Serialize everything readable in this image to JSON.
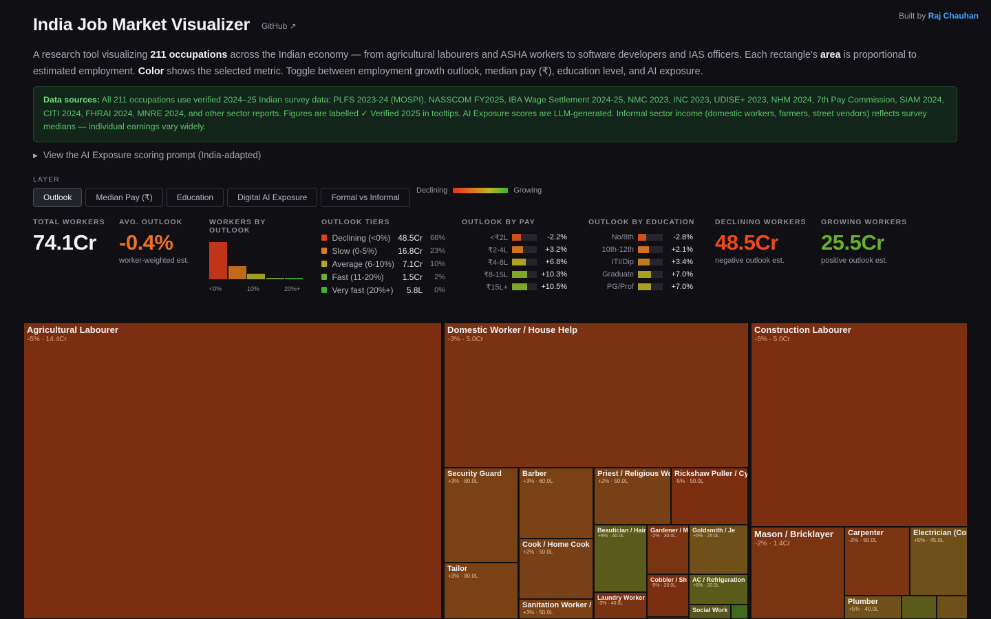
{
  "header": {
    "title": "India Job Market Visualizer",
    "github_link": "GitHub ↗",
    "built_by_prefix": "Built by",
    "author": "Raj Chauhan"
  },
  "intro": {
    "p1": "A research tool visualizing ",
    "b1": "211 occupations",
    "p2": " across the Indian economy — from agricultural labourers and ASHA workers to software developers and IAS officers. Each rectangle's ",
    "b2": "area",
    "p3": " is proportional to estimated employment. ",
    "b3": "Color",
    "p4": " shows the selected metric. Toggle between employment growth outlook, median pay (₹), education level, and AI exposure."
  },
  "sources": {
    "label": "Data sources:",
    "text": " All 211 occupations use verified 2024–25 Indian survey data: PLFS 2023-24 (MOSPI), NASSCOM FY2025, IBA Wage Settlement 2024-25, NMC 2023, INC 2023, UDISE+ 2023, NHM 2024, 7th Pay Commission, SIAM 2024, CITI 2024, FHRAI 2024, MNRE 2024, and other sector reports. Figures are labelled ✓ Verified 2025 in tooltips. AI Exposure scores are LLM-generated. Informal sector income (domestic workers, farmers, street vendors) reflects survey medians — individual earnings vary widely."
  },
  "prompt_toggle": "View the AI Exposure scoring prompt (India-adapted)",
  "layer": {
    "label": "LAYER",
    "tabs": [
      "Outlook",
      "Median Pay (₹)",
      "Education",
      "Digital AI Exposure",
      "Formal vs Informal"
    ],
    "active": 0
  },
  "legend": {
    "left": "Declining",
    "right": "Growing"
  },
  "stats": {
    "total": {
      "label": "TOTAL WORKERS",
      "value": "74.1Cr"
    },
    "avg": {
      "label": "AVG. OUTLOOK",
      "value": "-0.4%",
      "sub": "worker-weighted est.",
      "color": "#f07020"
    },
    "hist": {
      "label": "WORKERS BY OUTLOOK",
      "bars": [
        {
          "share": 0.66,
          "color": "#c0351a"
        },
        {
          "share": 0.23,
          "color": "#c06a1a"
        },
        {
          "share": 0.1,
          "color": "#a0a020"
        },
        {
          "share": 0.02,
          "color": "#6a9a20"
        },
        {
          "share": 0.01,
          "color": "#3aa030"
        }
      ],
      "ticks": [
        "<0%",
        "10%",
        "20%+"
      ]
    },
    "tiers": {
      "label": "OUTLOOK TIERS",
      "rows": [
        {
          "name": "Declining (<0%)",
          "count": "48.5Cr",
          "pct": "66%",
          "color": "#e0401c"
        },
        {
          "name": "Slow (0-5%)",
          "count": "16.8Cr",
          "pct": "23%",
          "color": "#e07a20"
        },
        {
          "name": "Average (6-10%)",
          "count": "7.1Cr",
          "pct": "10%",
          "color": "#b8a820"
        },
        {
          "name": "Fast (11-20%)",
          "count": "1.5Cr",
          "pct": "2%",
          "color": "#70b030"
        },
        {
          "name": "Very fast (20%+)",
          "count": "5.8L",
          "pct": "0%",
          "color": "#40b030"
        }
      ]
    },
    "by_pay": {
      "label": "OUTLOOK BY PAY",
      "rows": [
        {
          "label": "<₹2L",
          "value": "-2.2%",
          "fill": 0.35,
          "color": "#d0501c"
        },
        {
          "label": "₹2-4L",
          "value": "+3.2%",
          "fill": 0.45,
          "color": "#d07020"
        },
        {
          "label": "₹4-8L",
          "value": "+6.8%",
          "fill": 0.55,
          "color": "#b0a020"
        },
        {
          "label": "₹8-15L",
          "value": "+10.3%",
          "fill": 0.62,
          "color": "#80a828"
        },
        {
          "label": "₹15L+",
          "value": "+10.5%",
          "fill": 0.62,
          "color": "#80a828"
        }
      ]
    },
    "by_edu": {
      "label": "OUTLOOK BY EDUCATION",
      "rows": [
        {
          "label": "No/8th",
          "value": "-2.8%",
          "fill": 0.33,
          "color": "#d0501c"
        },
        {
          "label": "10th-12th",
          "value": "+2.1%",
          "fill": 0.45,
          "color": "#d07020"
        },
        {
          "label": "ITI/Dip",
          "value": "+3.4%",
          "fill": 0.47,
          "color": "#c07a20"
        },
        {
          "label": "Graduate",
          "value": "+7.0%",
          "fill": 0.52,
          "color": "#a8a020"
        },
        {
          "label": "PG/Prof",
          "value": "+7.0%",
          "fill": 0.52,
          "color": "#a8a020"
        }
      ]
    },
    "declining": {
      "label": "DECLINING WORKERS",
      "value": "48.5Cr",
      "sub": "negative outlook est.",
      "color": "#f04a1c"
    },
    "growing": {
      "label": "GROWING WORKERS",
      "value": "25.5Cr",
      "sub": "positive outlook est.",
      "color": "#6ab02a"
    }
  },
  "treemap": {
    "cells": [
      {
        "name": "Agricultural Labourer",
        "sub": "-5% · 14.4Cr",
        "color": "#7c2e10"
      },
      {
        "name": "Domestic Worker / House Help",
        "sub": "-3% · 5.0Cr",
        "color": "#7a3312"
      },
      {
        "name": "Construction Labourer",
        "sub": "-5% · 5.0Cr",
        "color": "#7c2e10"
      },
      {
        "name": "Security Guard",
        "sub": "+3% · 80.0L",
        "color": "#7a4214"
      },
      {
        "name": "Tailor",
        "sub": "+3% · 80.0L",
        "color": "#7a4214"
      },
      {
        "name": "Barber",
        "sub": "+3% · 60.0L",
        "color": "#7a4214"
      },
      {
        "name": "Cook / Home Cook",
        "sub": "+2% · 50.0L",
        "color": "#784016"
      },
      {
        "name": "Sanitation Worker / ",
        "sub": "+3% · 50.0L",
        "color": "#7a4214"
      },
      {
        "name": "Priest / Religious Wo",
        "sub": "+2% · 50.0L",
        "color": "#784016"
      },
      {
        "name": "Rickshaw Puller / Cy",
        "sub": "-5% · 50.0L",
        "color": "#7c2e10"
      },
      {
        "name": "Beautician / Hair",
        "sub": "+8% · 40.0L",
        "color": "#5a5a1a"
      },
      {
        "name": "Gardener / Mali",
        "sub": "-2% · 30.0L",
        "color": "#7a3412"
      },
      {
        "name": "Goldsmith / Je",
        "sub": "+5% · 25.0L",
        "color": "#6e5018"
      },
      {
        "name": "Cobbler / Sh",
        "sub": "-5% · 20.0L",
        "color": "#7c2e10"
      },
      {
        "name": "AC / Refrigeration",
        "sub": "+8% · 20.0L",
        "color": "#5a5a1a"
      },
      {
        "name": "Laundry Worker",
        "sub": "-3% · 40.0L",
        "color": "#7a3312"
      },
      {
        "name": "Social Work",
        "sub": "",
        "color": "#56561c"
      },
      {
        "name": "",
        "sub": "",
        "color": "#3e6a1c"
      },
      {
        "name": "",
        "sub": "",
        "color": "#5a5a1a"
      },
      {
        "name": "Mason / Bricklayer",
        "sub": "-2% · 1.4Cr",
        "color": "#7a3412"
      },
      {
        "name": "Carpenter",
        "sub": "-2% · 50.0L",
        "color": "#7a3412"
      },
      {
        "name": "Electrician (Constr",
        "sub": "+5% · 45.0L",
        "color": "#6e5018"
      },
      {
        "name": "Plumber",
        "sub": "+5% · 40.0L",
        "color": "#6e5018"
      },
      {
        "name": "",
        "sub": "",
        "color": "#5a5a1a"
      },
      {
        "name": "",
        "sub": "",
        "color": "#6e5018"
      }
    ]
  }
}
